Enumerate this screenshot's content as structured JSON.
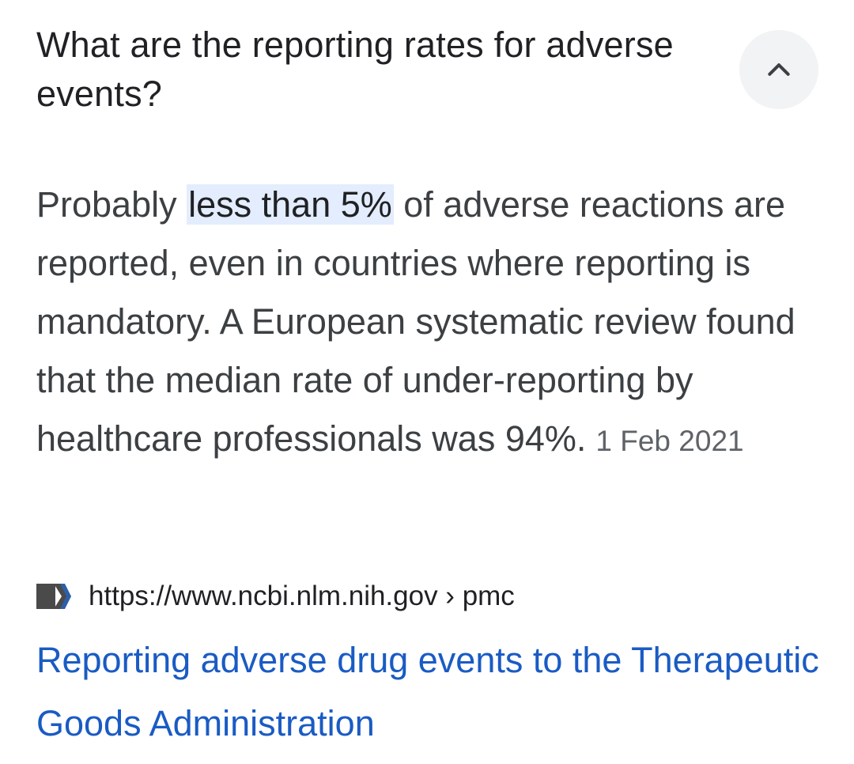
{
  "question": {
    "text": "What are the reporting rates for adverse events?",
    "toggle_icon": "chevron-up-icon"
  },
  "answer": {
    "prefix": "Probably ",
    "highlight": "less than 5%",
    "suffix": " of adverse reactions are reported, even in countries where reporting is mandatory. A European systematic review found that the median rate of under-reporting by healthcare professionals was 94%.",
    "date": "1 Feb 2021"
  },
  "source": {
    "favicon_icon": "ncbi-favicon-icon",
    "url": "https://www.ncbi.nlm.nih.gov › pmc"
  },
  "result": {
    "title": "Reporting adverse drug events to the Therapeutic Goods Administration"
  },
  "colors": {
    "link": "#1a5bc4",
    "highlight": "#e3edfd",
    "button_bg": "#f1f3f4"
  }
}
